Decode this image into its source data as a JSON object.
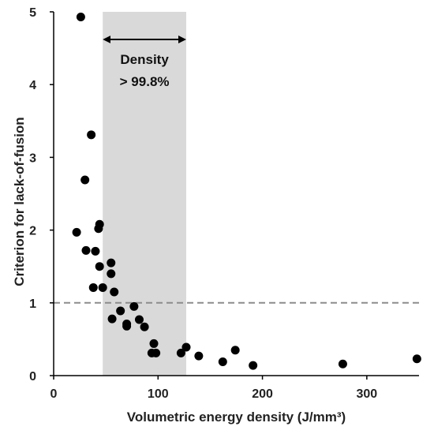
{
  "chart_data": {
    "type": "scatter",
    "title": "",
    "xlabel": "Volumetric energy density (J/mm³)",
    "ylabel": "Criterion for lack-of-fusion",
    "xlim": [
      0,
      350
    ],
    "ylim": [
      0,
      5
    ],
    "x_ticks": [
      "0",
      "100",
      "200",
      "300"
    ],
    "y_ticks": [
      "0",
      "1",
      "2",
      "3",
      "4",
      "5"
    ],
    "grid": false,
    "legend": "none",
    "marker_color": "#000000",
    "shaded_band": {
      "x_range": [
        47,
        127
      ],
      "color": "#d9d9d9",
      "label_line1": "Density",
      "label_line2": "> 99.8%"
    },
    "reference_line": {
      "y": 1,
      "style": "dashed",
      "color": "#8c8c8c"
    },
    "points": [
      {
        "x": 26,
        "y": 4.93
      },
      {
        "x": 36,
        "y": 3.31
      },
      {
        "x": 30,
        "y": 2.69
      },
      {
        "x": 22,
        "y": 1.97
      },
      {
        "x": 44,
        "y": 2.08
      },
      {
        "x": 43,
        "y": 2.02
      },
      {
        "x": 31,
        "y": 1.72
      },
      {
        "x": 40,
        "y": 1.71
      },
      {
        "x": 44,
        "y": 1.5
      },
      {
        "x": 38,
        "y": 1.21
      },
      {
        "x": 47,
        "y": 1.21
      },
      {
        "x": 55,
        "y": 1.55
      },
      {
        "x": 55,
        "y": 1.4
      },
      {
        "x": 58,
        "y": 1.15
      },
      {
        "x": 77,
        "y": 0.95
      },
      {
        "x": 64,
        "y": 0.89
      },
      {
        "x": 56,
        "y": 0.78
      },
      {
        "x": 70,
        "y": 0.71
      },
      {
        "x": 70,
        "y": 0.68
      },
      {
        "x": 82,
        "y": 0.77
      },
      {
        "x": 87,
        "y": 0.67
      },
      {
        "x": 96,
        "y": 0.44
      },
      {
        "x": 94,
        "y": 0.31
      },
      {
        "x": 98,
        "y": 0.31
      },
      {
        "x": 122,
        "y": 0.31
      },
      {
        "x": 127,
        "y": 0.39
      },
      {
        "x": 139,
        "y": 0.27
      },
      {
        "x": 162,
        "y": 0.19
      },
      {
        "x": 174,
        "y": 0.35
      },
      {
        "x": 191,
        "y": 0.14
      },
      {
        "x": 277,
        "y": 0.16
      },
      {
        "x": 348,
        "y": 0.23
      }
    ]
  }
}
